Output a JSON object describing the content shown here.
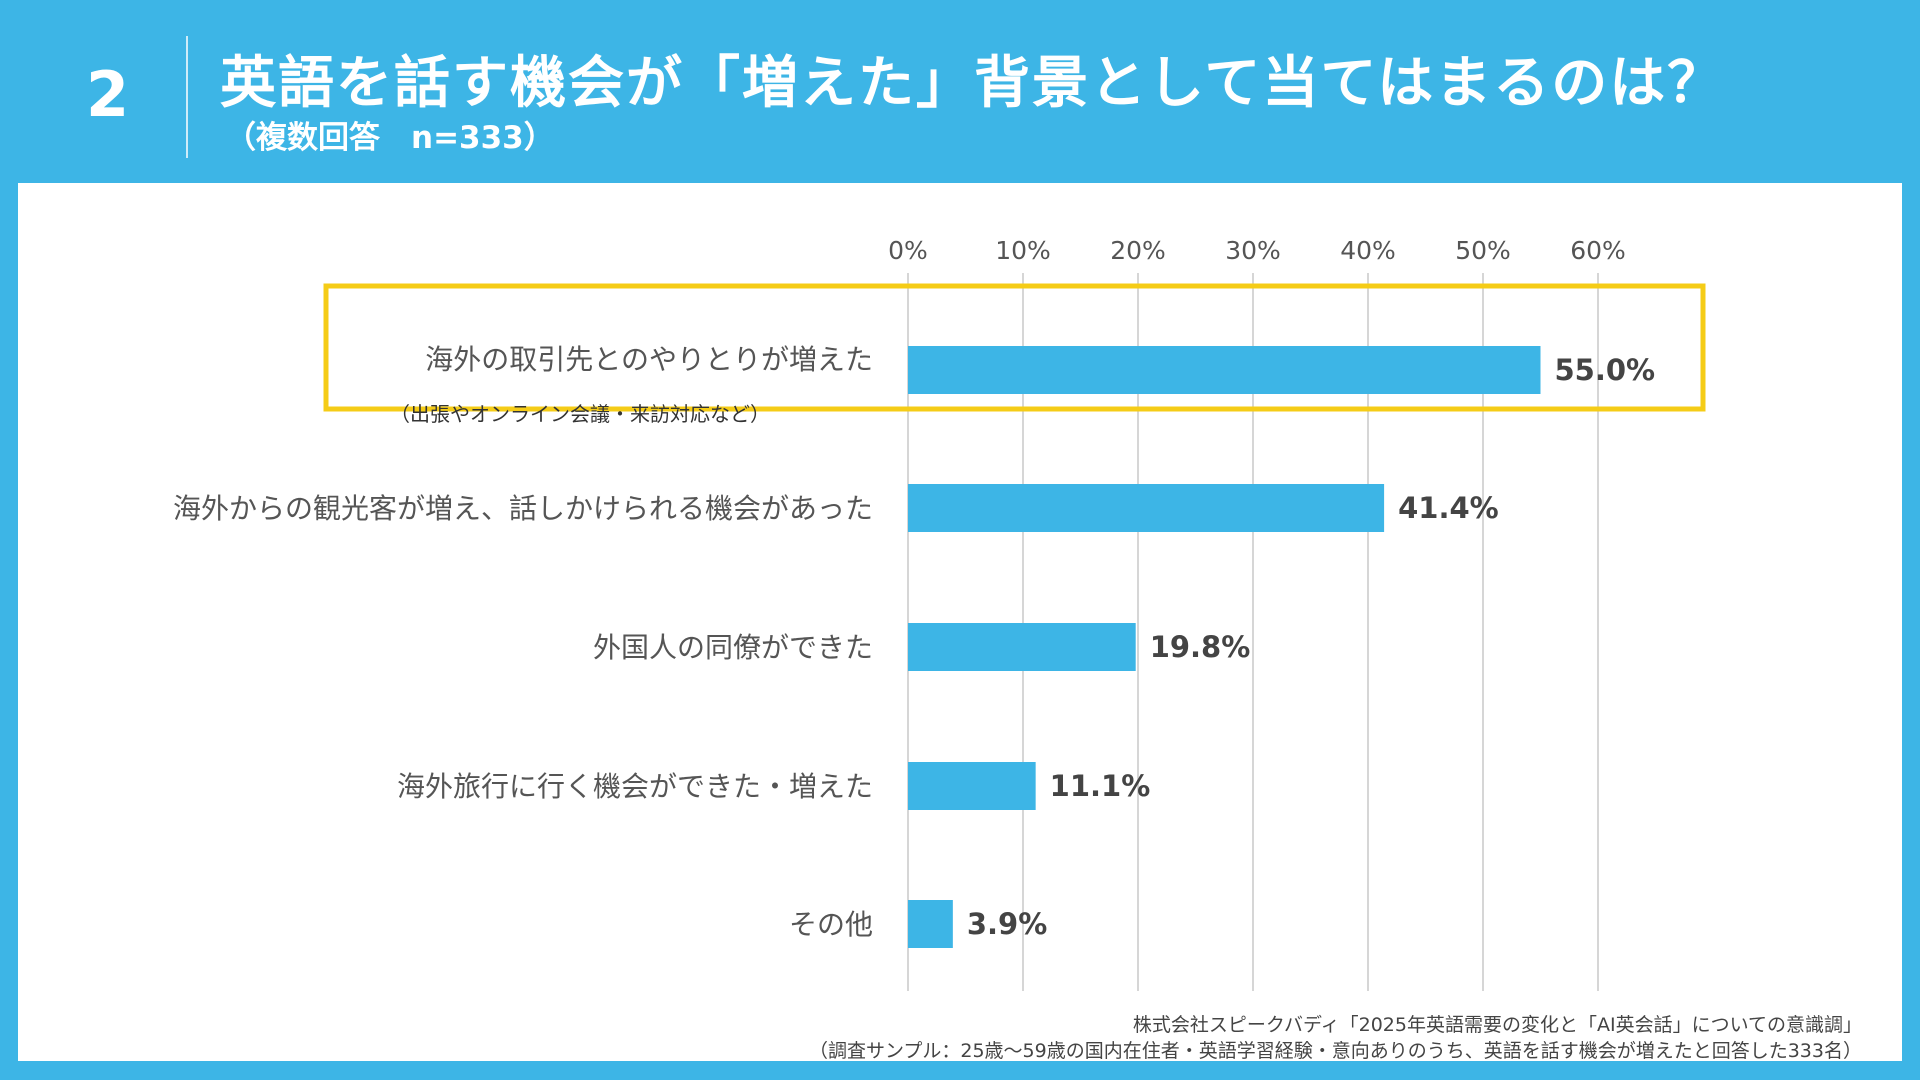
{
  "header": {
    "number": "2",
    "title": "英語を話す機会が「増えた」背景として当てはまるのは？",
    "subtitle": "（複数回答　n=333）"
  },
  "colors": {
    "background": "#3db5e6",
    "bar": "#3db5e6",
    "highlight_border": "#f5cc17",
    "grid": "#d6d6d6"
  },
  "chart_data": {
    "type": "bar",
    "orientation": "horizontal",
    "categories": [
      "海外の取引先とのやりとりが増えた",
      "海外からの観光客が増え、話しかけられる機会があった",
      "外国人の同僚ができた",
      "海外旅行に行く機会ができた・増えた",
      "その他"
    ],
    "category_notes": [
      "（出張やオンライン会議・来訪対応など）",
      "",
      "",
      "",
      ""
    ],
    "values": [
      55.0,
      41.4,
      19.8,
      11.1,
      3.9
    ],
    "value_labels": [
      "55.0%",
      "41.4%",
      "19.8%",
      "11.1%",
      "3.9%"
    ],
    "xlim": [
      0,
      60
    ],
    "ticks": [
      0,
      10,
      20,
      30,
      40,
      50,
      60
    ],
    "tick_labels": [
      "0%",
      "10%",
      "20%",
      "30%",
      "40%",
      "50%",
      "60%"
    ],
    "axis_position": "top",
    "grid": true,
    "highlighted_index": 0
  },
  "source": {
    "line1": "株式会社スピークバディ「2025年英語需要の変化と「AI英会話」についての意識調」",
    "line2": "（調査サンプル：25歳～59歳の国内在住者・英語学習経験・意向ありのうち、英語を話す機会が増えたと回答した333名）"
  }
}
